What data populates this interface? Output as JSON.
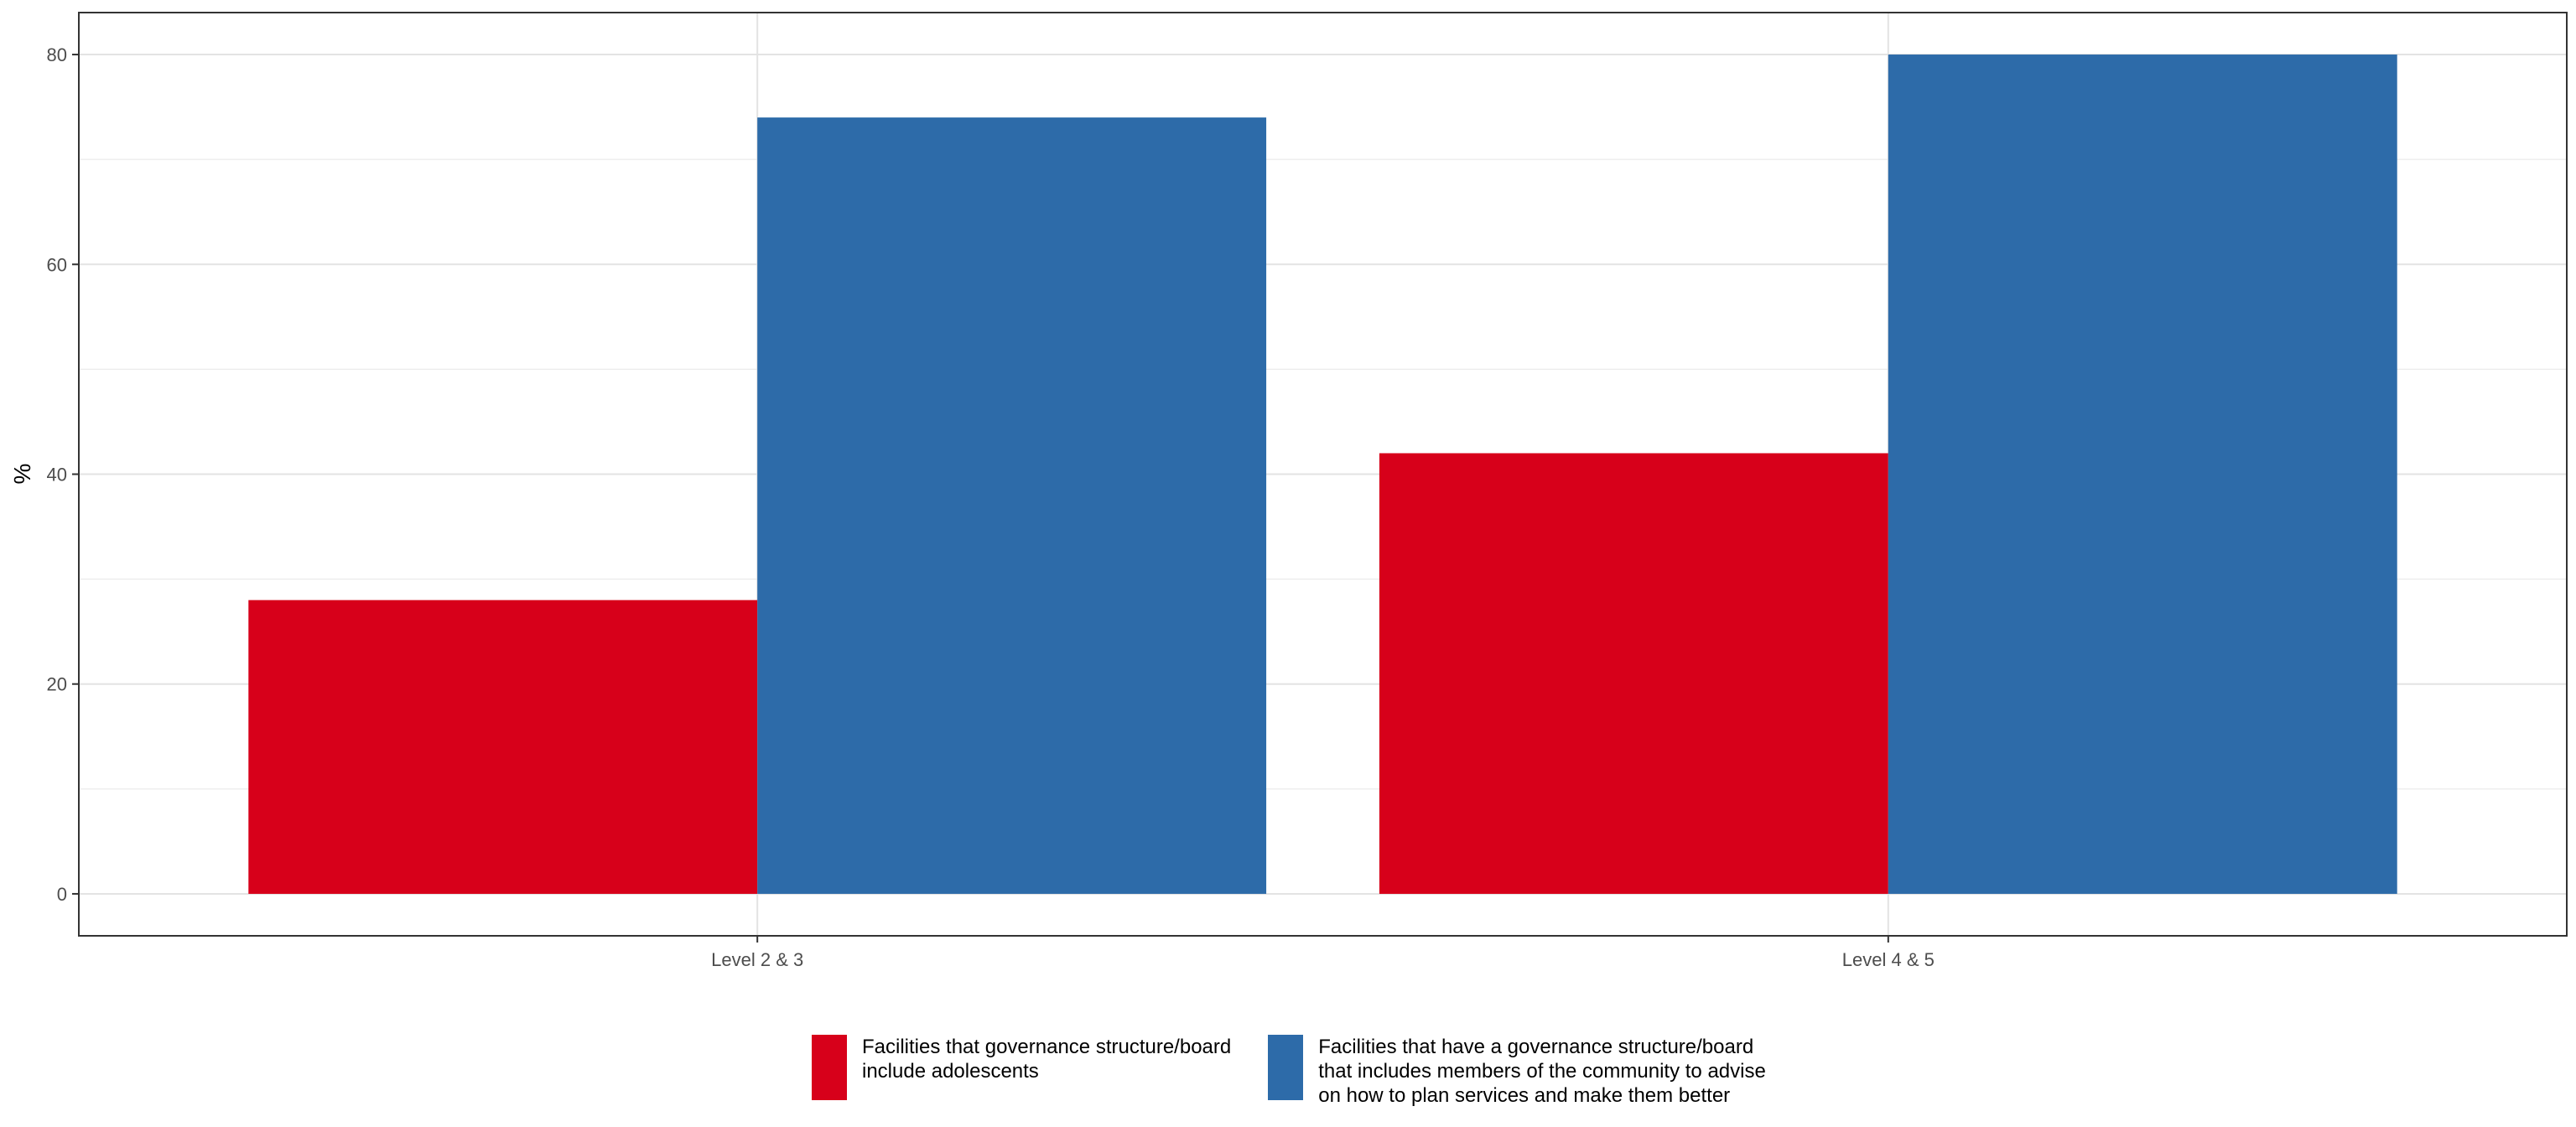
{
  "chart_data": {
    "type": "bar",
    "categories": [
      "Level 2 & 3",
      "Level 4 & 5"
    ],
    "series": [
      {
        "name": "Facilities that governance structure/board\ninclude adolescents",
        "color": "#D7001A",
        "values": [
          28,
          42
        ]
      },
      {
        "name": "Facilities that have a governance structure/board\nthat includes members of the community to advise\non how to plan services and make them better",
        "color": "#2D6BA9",
        "values": [
          74,
          80
        ]
      }
    ],
    "xlabel": "",
    "ylabel": "%",
    "ylim": [
      -4,
      84
    ],
    "yticks": [
      0,
      20,
      40,
      60,
      80
    ],
    "ytick_labels": [
      "0",
      "20",
      "40",
      "60",
      "80"
    ],
    "grid": true,
    "legend_position": "bottom"
  }
}
